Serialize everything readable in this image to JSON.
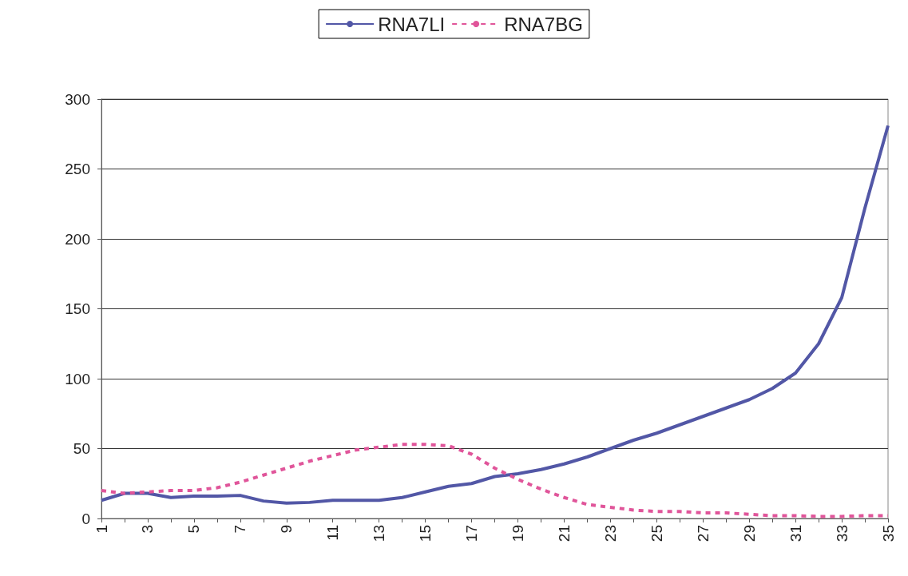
{
  "chart_data": {
    "type": "line",
    "categories": [
      "1",
      null,
      "3",
      null,
      "5",
      null,
      "7",
      null,
      "9",
      null,
      "11",
      null,
      "13",
      null,
      "15",
      null,
      "17",
      null,
      "19",
      null,
      "21",
      null,
      "23",
      null,
      "25",
      null,
      "27",
      null,
      "29",
      null,
      "31",
      null,
      "33",
      null,
      "35"
    ],
    "series": [
      {
        "name": "RNA7LI",
        "color": "#5257a6",
        "line_style": "solid",
        "values": [
          13,
          18,
          18,
          15,
          16,
          16,
          16.5,
          12.5,
          11,
          11.5,
          13,
          13,
          13,
          15,
          19,
          23,
          25,
          30,
          32,
          35,
          39,
          44,
          50,
          56,
          61,
          67,
          73,
          79,
          85,
          93,
          104,
          125,
          158,
          222,
          281
        ]
      },
      {
        "name": "RNA7BG",
        "color": "#e0559a",
        "line_style": "dashed",
        "values": [
          20,
          18,
          19,
          20,
          20,
          22,
          26,
          31,
          36,
          41,
          45,
          49,
          51,
          53,
          53,
          52,
          46,
          36,
          28,
          21,
          15,
          10,
          8,
          6,
          5,
          5,
          4,
          4,
          3,
          2,
          2,
          1.5,
          1.5,
          2,
          2
        ]
      }
    ],
    "ylim": [
      0,
      300
    ],
    "yticks": [
      0,
      50,
      100,
      150,
      200,
      250,
      300
    ],
    "grid": "y",
    "legend": "top",
    "marker": "none"
  }
}
